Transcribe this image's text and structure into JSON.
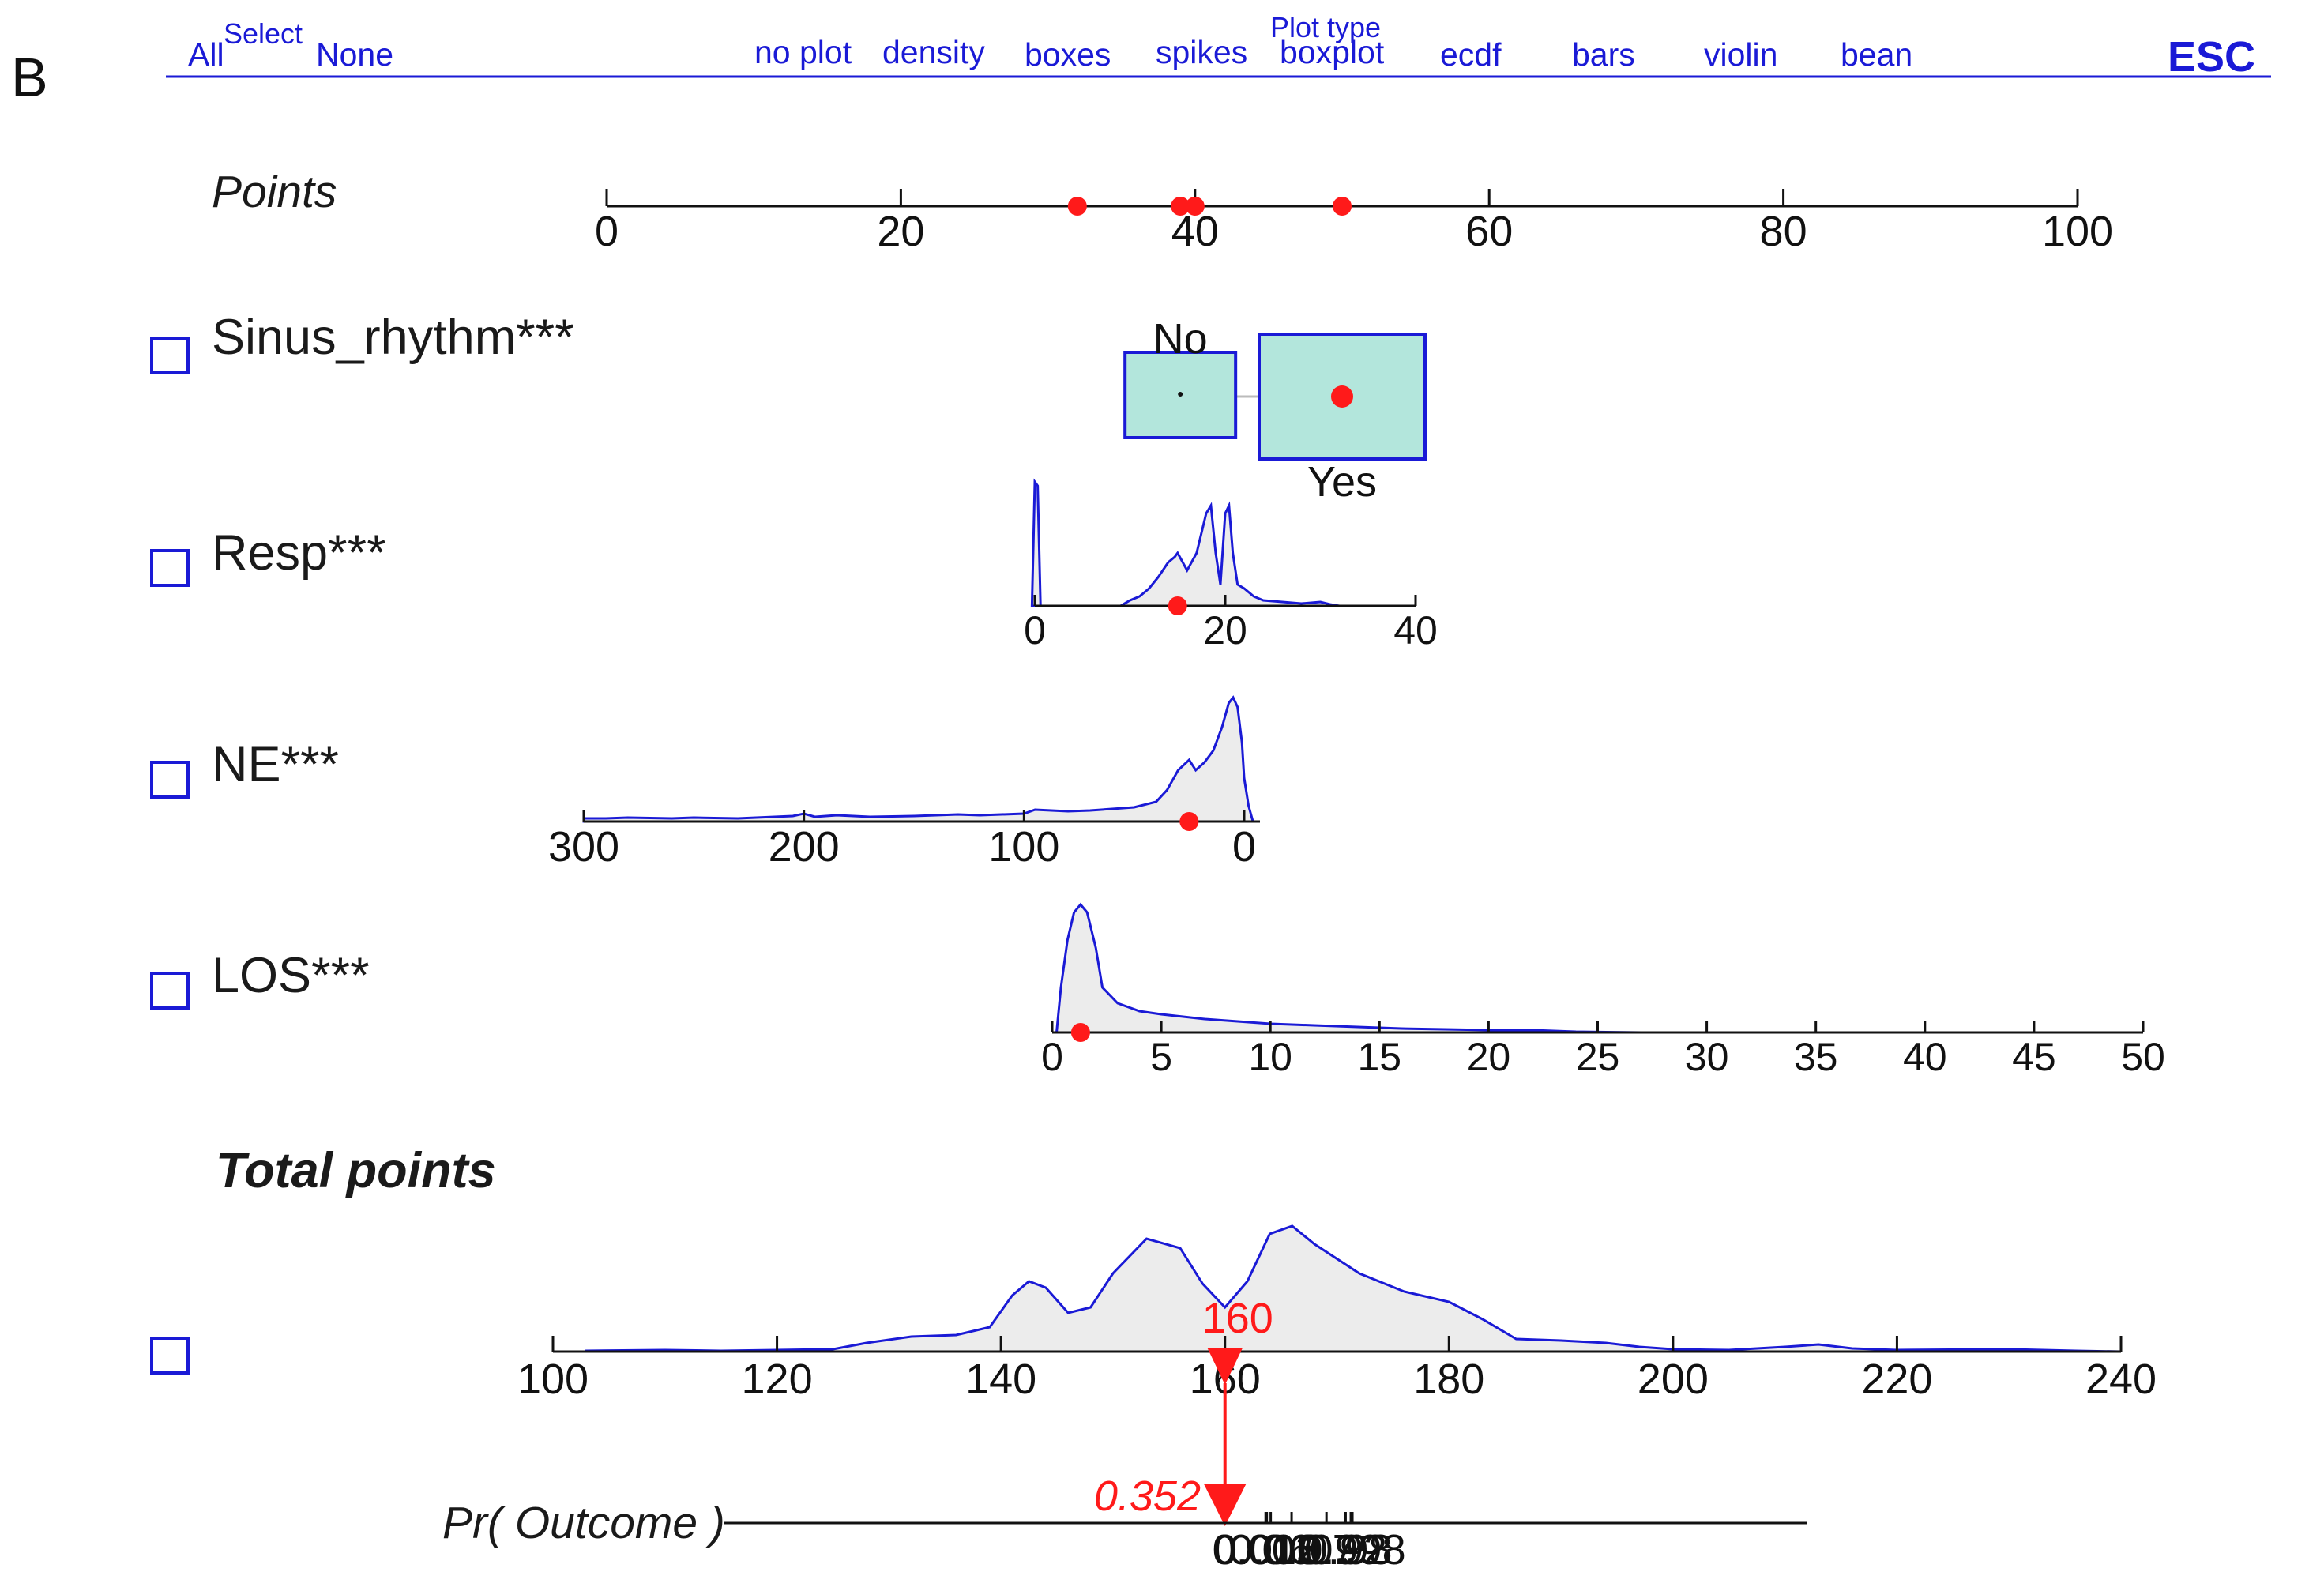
{
  "panel_label": "B",
  "menu": {
    "select_group": "Select",
    "select_all": "All",
    "select_none": "None",
    "plot_type_group": "Plot type",
    "plot_types": [
      "no plot",
      "density",
      "boxes",
      "spikes",
      "boxplot",
      "ecdf",
      "bars",
      "violin",
      "bean"
    ],
    "esc": "ESC"
  },
  "colors": {
    "accent_blue": "#1a1ad6",
    "marker_red": "#ff1a1a",
    "box_fill": "#b3e6dc",
    "density_fill": "#ececec"
  },
  "icons": {
    "checkbox": "checkbox-icon",
    "marker": "red-dot-marker",
    "pointer": "red-triangle-pointer"
  },
  "chart_data": {
    "type": "nomogram",
    "points_axis": {
      "label": "Points",
      "min": 0,
      "max": 100,
      "ticks": [
        "0",
        "20",
        "40",
        "60",
        "80",
        "100"
      ],
      "markers": [
        32,
        39,
        40,
        50
      ]
    },
    "variables": [
      {
        "name": "Sinus_rhythm***",
        "type": "categorical",
        "levels": [
          "No",
          "Yes"
        ],
        "level_points": [
          39,
          50
        ],
        "selected": "Yes"
      },
      {
        "name": "Resp***",
        "type": "continuous",
        "xlim": [
          0,
          40
        ],
        "ticks": [
          "0",
          "20",
          "40"
        ],
        "selected_value": 15
      },
      {
        "name": "NE***",
        "type": "continuous",
        "xlim": [
          300,
          0
        ],
        "ticks": [
          "300",
          "200",
          "100",
          "0"
        ],
        "selected_value": 25
      },
      {
        "name": "LOS***",
        "type": "continuous",
        "xlim": [
          0,
          50
        ],
        "ticks": [
          "0",
          "5",
          "10",
          "15",
          "20",
          "25",
          "30",
          "35",
          "40",
          "45",
          "50"
        ],
        "selected_value": 1.3
      }
    ],
    "total_points": {
      "label": "Total points",
      "xlim": [
        100,
        240
      ],
      "ticks": [
        "100",
        "120",
        "140",
        "160",
        "180",
        "200",
        "220",
        "240"
      ],
      "value": 160,
      "value_label": "160"
    },
    "outcome": {
      "label": "Pr( Outcome )",
      "ticks": [
        "0.002",
        "0.015",
        "0.06",
        "0.3",
        "0.7",
        "0.92",
        "0.98",
        "0.998"
      ],
      "value": 0.352,
      "value_label": "0.352"
    }
  }
}
